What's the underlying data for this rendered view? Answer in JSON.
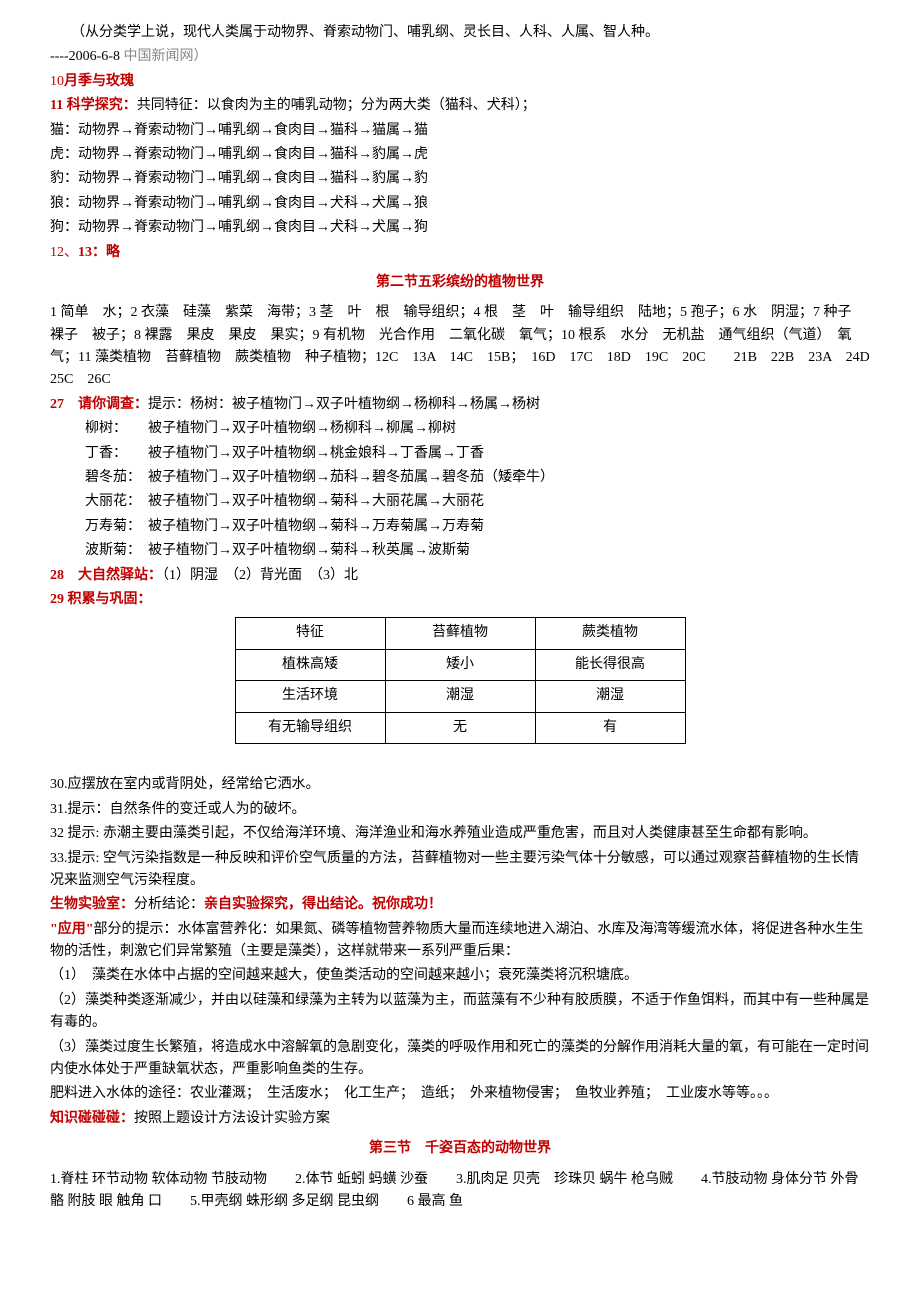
{
  "intro": {
    "line1": "（从分类学上说，现代人类属于动物界、脊索动物门、哺乳纲、灵长目、人科、人属、智人种。",
    "line2_prefix": "----2006-6-8",
    "line2_gray": " 中国新闻网）"
  },
  "q10": {
    "label": "10",
    "text": "月季与玫瑰"
  },
  "q11": {
    "label": "11 科学探究：",
    "text": "共同特征：以食肉为主的哺乳动物；分为两大类（猫科、犬科）；",
    "rows": [
      "猫：动物界→脊索动物门→哺乳纲→食肉目→猫科→猫属→猫",
      "虎：动物界→脊索动物门→哺乳纲→食肉目→猫科→豹属→虎",
      "豹：动物界→脊索动物门→哺乳纲→食肉目→猫科→豹属→豹",
      "狼：动物界→脊索动物门→哺乳纲→食肉目→犬科→犬属→狼",
      "狗：动物界→脊索动物门→哺乳纲→食肉目→犬科→犬属→狗"
    ]
  },
  "q12_13": {
    "prefix": "12、",
    "label": "13：略"
  },
  "section2_title": "第二节五彩缤纷的植物世界",
  "s2_block": "1 简单　水；2 衣藻　硅藻　紫菜　海带；3 茎　叶　根　输导组织；4 根　茎　叶　输导组织　陆地；5 孢子；6 水　阴湿；7 种子　裸子　被子；8 裸露　果皮　果皮　果实；9 有机物　光合作用　二氧化碳　氧气；10 根系　水分　无机盐　通气组织（气道）　氧气；11 藻类植物　苔藓植物　蕨类植物　种子植物；12C　13A　14C　15B；　16D　17C　18D　19C　20C　　21B　22B　23A　24D　25C　26C",
  "q27": {
    "label": "27　请你调查：",
    "text": "提示：杨树：被子植物门→双子叶植物纲→杨柳科→杨属→杨树",
    "rows": [
      "柳树：　　被子植物门→双子叶植物纲→杨柳科→柳属→柳树",
      "丁香：　　被子植物门→双子叶植物纲→桃金娘科→丁香属→丁香",
      "碧冬茄：　被子植物门→双子叶植物纲→茄科→碧冬茄属→碧冬茄（矮牵牛）",
      "大丽花：　被子植物门→双子叶植物纲→菊科→大丽花属→大丽花",
      "万寿菊：　被子植物门→双子叶植物纲→菊科→万寿菊属→万寿菊",
      "波斯菊：　被子植物门→双子叶植物纲→菊科→秋英属→波斯菊"
    ]
  },
  "q28": {
    "label": "28　大自然驿站：",
    "text": "（1）阴湿　（2）背光面　（3）北"
  },
  "q29": {
    "label": "29 积累与巩固："
  },
  "table": {
    "columns": [
      "特征",
      "苔藓植物",
      "蕨类植物"
    ],
    "rows": [
      [
        "植株高矮",
        "矮小",
        "能长得很高"
      ],
      [
        "生活环境",
        "潮湿",
        "潮湿"
      ],
      [
        "有无输导组织",
        "无",
        "有"
      ]
    ]
  },
  "q30": "30.应摆放在室内或背阴处，经常给它洒水。",
  "q31": "31.提示：自然条件的变迁或人为的破坏。",
  "q32": "32 提示: 赤潮主要由藻类引起，不仅给海洋环境、海洋渔业和海水养殖业造成严重危害，而且对人类健康甚至生命都有影响。",
  "q33": "33.提示: 空气污染指数是一种反映和评价空气质量的方法，苔藓植物对一些主要污染气体十分敏感，可以通过观察苔藓植物的生长情况来监测空气污染程度。",
  "lab": {
    "label": "生物实验室：",
    "text1": "分析结论：",
    "bold_text": "亲自实验探究，得出结论。祝你成功！"
  },
  "app": {
    "label": "\"应用\"",
    "text": "部分的提示：水体富营养化：如果氮、磷等植物营养物质大量而连续地进入湖泊、水库及海湾等缓流水体，将促进各种水生生物的活性，刺激它们异常繁殖（主要是藻类），这样就带来一系列严重后果："
  },
  "app_items": [
    "（1）　藻类在水体中占据的空间越来越大，使鱼类活动的空间越来越小；衰死藻类将沉积塘底。",
    "（2）藻类种类逐渐减少，并由以硅藻和绿藻为主转为以蓝藻为主，而蓝藻有不少种有胶质膜，不适于作鱼饵料，而其中有一些种属是有毒的。",
    "（3）藻类过度生长繁殖，将造成水中溶解氧的急剧变化，藻类的呼吸作用和死亡的藻类的分解作用消耗大量的氧，有可能在一定时间内使水体处于严重缺氧状态，严重影响鱼类的生存。"
  ],
  "fertilizer": "肥料进入水体的途径：农业灌溉；　生活废水；　化工生产；　造纸；　外来植物侵害；　鱼牧业养殖；　工业废水等等。。。",
  "knowledge": {
    "label": "知识碰碰碰：",
    "text": "按照上题设计方法设计实验方案"
  },
  "section3_title": "第三节　千姿百态的动物世界",
  "s3_block": "1.脊柱  环节动物  软体动物  节肢动物　　2.体节  蚯蚓  蚂蟥  沙蚕　　3.肌肉足  贝壳　珍珠贝 蜗牛 枪乌贼　　4.节肢动物  身体分节  外骨骼  附肢  眼  触角  口　　5.甲壳纲  蛛形纲  多足纲  昆虫纲　　6 最高  鱼",
  "colors": {
    "red": "#c00000",
    "gray": "#888888",
    "text": "#000000",
    "bg": "#ffffff",
    "border": "#000000"
  }
}
